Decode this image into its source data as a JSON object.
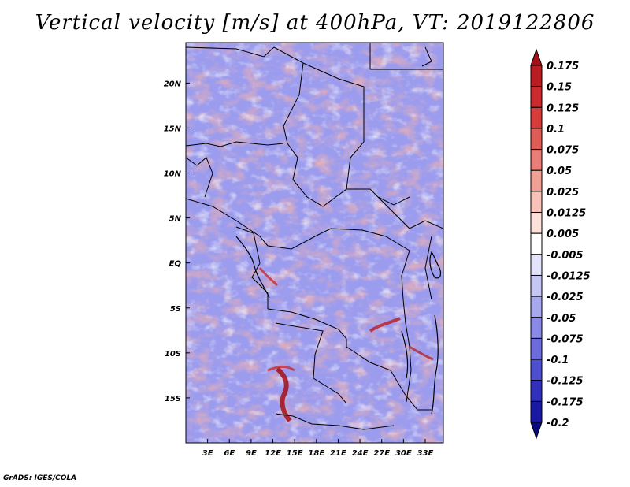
{
  "title": "Vertical velocity [m/s] at 400hPa, VT: 2019122806",
  "credit": "GrADS: IGES/COLA",
  "chart_data": {
    "type": "heatmap",
    "title": "Vertical velocity [m/s] at 400hPa, VT: 2019122806",
    "variable": "Vertical velocity",
    "units": "m/s",
    "level": "400hPa",
    "valid_time": "2019122806",
    "lon_range": [
      0,
      35.5
    ],
    "lat_range": [
      -20,
      24.5
    ],
    "x_ticks": [
      {
        "value": 3,
        "label": "3E"
      },
      {
        "value": 6,
        "label": "6E"
      },
      {
        "value": 9,
        "label": "9E"
      },
      {
        "value": 12,
        "label": "12E"
      },
      {
        "value": 15,
        "label": "15E"
      },
      {
        "value": 18,
        "label": "18E"
      },
      {
        "value": 21,
        "label": "21E"
      },
      {
        "value": 24,
        "label": "24E"
      },
      {
        "value": 27,
        "label": "27E"
      },
      {
        "value": 30,
        "label": "30E"
      },
      {
        "value": 33,
        "label": "33E"
      }
    ],
    "y_ticks": [
      {
        "value": 20,
        "label": "20N"
      },
      {
        "value": 15,
        "label": "15N"
      },
      {
        "value": 10,
        "label": "10N"
      },
      {
        "value": 5,
        "label": "5N"
      },
      {
        "value": 0,
        "label": "EQ"
      },
      {
        "value": -5,
        "label": "5S"
      },
      {
        "value": -10,
        "label": "10S"
      },
      {
        "value": -15,
        "label": "15S"
      }
    ],
    "colorbar": {
      "labels": [
        "0.175",
        "0.15",
        "0.125",
        "0.1",
        "0.075",
        "0.05",
        "0.025",
        "0.0125",
        "0.005",
        "-0.005",
        "-0.0125",
        "-0.025",
        "-0.05",
        "-0.075",
        "-0.1",
        "-0.125",
        "-0.175",
        "-0.2"
      ],
      "colors": [
        "#a50f15",
        "#b81d22",
        "#cb2a2e",
        "#d73c3a",
        "#df5d57",
        "#e87e75",
        "#f0a094",
        "#f7c2b7",
        "#fbe1da",
        "#ffffff",
        "#e3e3fb",
        "#c6c6f5",
        "#a8a8ee",
        "#8a8ae6",
        "#6c6cdc",
        "#4e4ed0",
        "#3030bd",
        "#1818a3",
        "#0a0a80"
      ]
    }
  }
}
